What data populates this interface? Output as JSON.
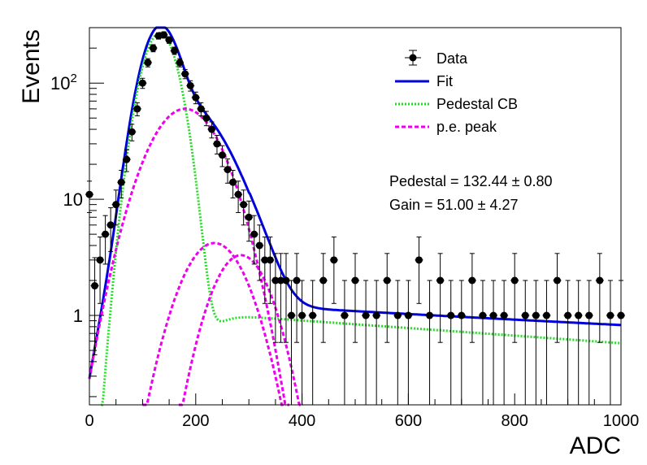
{
  "chart_data": {
    "type": "scatter",
    "title": "",
    "xlabel": "ADC",
    "ylabel": "Events",
    "xlim": [
      0,
      1000
    ],
    "ylim": [
      0.17,
      300
    ],
    "yscale": "log",
    "grid": false,
    "legend_position": "top-right",
    "x_ticks": [
      "0",
      "200",
      "400",
      "600",
      "800",
      "1000"
    ],
    "y_ticks": [
      {
        "value": 1,
        "label": "1",
        "exponent": ""
      },
      {
        "value": 10,
        "label": "10",
        "exponent": ""
      },
      {
        "value": 100,
        "label": "10",
        "exponent": "2"
      }
    ],
    "legend": [
      {
        "label": "Data",
        "style": "marker",
        "color": "#000000"
      },
      {
        "label": "Fit",
        "style": "solid",
        "color": "#0000dd"
      },
      {
        "label": "Pedestal CB",
        "style": "dotted",
        "color": "#22dd22"
      },
      {
        "label": "p.e. peak",
        "style": "dashed",
        "color": "#ee00ee"
      }
    ],
    "annotations": [
      {
        "label": "Pedestal = ",
        "value": "132.44",
        "error": "0.80"
      },
      {
        "label": "Gain = ",
        "value": "51.00",
        "error": "4.27"
      }
    ],
    "fit": {
      "pedestal": 132.44,
      "gain": 51.0,
      "pedestal_sigma": 28,
      "pedestal_amplitude": 270,
      "pe_peaks": [
        {
          "mean": 180,
          "sigma": 55,
          "amplitude": 60
        },
        {
          "mean": 235,
          "sigma": 50,
          "amplitude": 4.2
        },
        {
          "mean": 285,
          "sigma": 45,
          "amplitude": 3.3
        }
      ],
      "tail_level": 1.3,
      "tail_slope": 0.00075
    },
    "series": [
      {
        "name": "Data",
        "x": [
          0,
          10,
          20,
          30,
          40,
          50,
          60,
          70,
          80,
          90,
          100,
          110,
          120,
          130,
          140,
          150,
          160,
          170,
          180,
          190,
          200,
          210,
          220,
          230,
          240,
          250,
          260,
          270,
          280,
          290,
          300,
          310,
          320,
          330,
          340,
          350,
          360,
          370,
          380,
          390,
          400,
          420,
          440,
          460,
          480,
          500,
          520,
          540,
          560,
          580,
          600,
          620,
          640,
          660,
          680,
          700,
          720,
          740,
          760,
          780,
          800,
          820,
          840,
          860,
          880,
          900,
          920,
          940,
          960,
          980,
          1000
        ],
        "y": [
          11,
          1.8,
          3,
          5,
          6,
          9,
          14,
          22,
          38,
          60,
          100,
          150,
          200,
          255,
          260,
          235,
          190,
          150,
          120,
          95,
          75,
          60,
          50,
          40,
          30,
          24,
          18,
          14,
          11,
          9,
          7,
          5,
          4,
          3,
          3,
          2,
          2,
          2,
          1,
          2,
          1,
          1,
          2,
          3,
          1,
          2,
          1,
          1,
          2,
          1,
          1,
          3,
          1,
          2,
          1,
          1,
          2,
          1,
          1,
          1,
          2,
          1,
          1,
          1,
          2,
          1,
          1,
          1,
          2,
          1,
          1
        ]
      }
    ]
  }
}
